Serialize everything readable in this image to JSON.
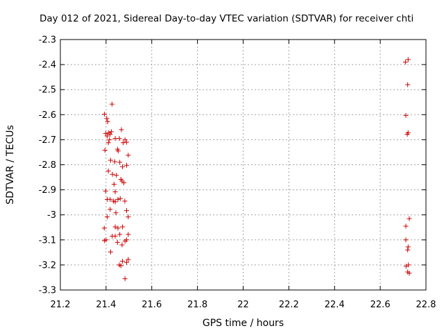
{
  "chart_data": {
    "type": "scatter",
    "title": "Day 012 of 2021, Sidereal Day-to-day VTEC variation (SDTVAR) for receiver chti",
    "xlabel": "GPS time / hours",
    "ylabel": "SDTVAR / TECUs",
    "xlim": [
      21.2,
      22.8
    ],
    "ylim": [
      -3.3,
      -2.3
    ],
    "xticks": [
      21.2,
      21.4,
      21.6,
      21.8,
      22,
      22.2,
      22.4,
      22.6,
      22.8
    ],
    "xtick_labels": [
      "21.2",
      "21.4",
      "21.6",
      "21.8",
      "22",
      "22.2",
      "22.4",
      "22.6",
      "22.8"
    ],
    "yticks": [
      -2.3,
      -2.4,
      -2.5,
      -2.6,
      -2.7,
      -2.8,
      -2.9,
      -3.0,
      -3.1,
      -3.2,
      -3.3
    ],
    "ytick_labels": [
      "-2.3",
      "-2.4",
      "-2.5",
      "-2.6",
      "-2.7",
      "-2.8",
      "-2.9",
      "-3",
      "-3.1",
      "-3.2",
      "-3.3"
    ],
    "grid": true,
    "marker": "plus",
    "marker_color": "#cc0000",
    "grid_color": "#a0a0a0",
    "series": [
      {
        "points": [
          [
            21.393,
            -2.598
          ],
          [
            21.403,
            -2.615
          ],
          [
            21.407,
            -2.628
          ],
          [
            21.398,
            -2.675
          ],
          [
            21.412,
            -2.672
          ],
          [
            21.405,
            -2.685
          ],
          [
            21.423,
            -2.668
          ],
          [
            21.418,
            -2.678
          ],
          [
            21.426,
            -2.558
          ],
          [
            21.395,
            -2.742
          ],
          [
            21.41,
            -2.712
          ],
          [
            21.415,
            -2.7
          ],
          [
            21.44,
            -2.695
          ],
          [
            21.458,
            -2.695
          ],
          [
            21.467,
            -2.66
          ],
          [
            21.475,
            -2.712
          ],
          [
            21.483,
            -2.7
          ],
          [
            21.49,
            -2.71
          ],
          [
            21.45,
            -2.738
          ],
          [
            21.453,
            -2.745
          ],
          [
            21.497,
            -2.762
          ],
          [
            21.42,
            -2.782
          ],
          [
            21.438,
            -2.788
          ],
          [
            21.46,
            -2.79
          ],
          [
            21.472,
            -2.808
          ],
          [
            21.49,
            -2.802
          ],
          [
            21.41,
            -2.825
          ],
          [
            21.428,
            -2.838
          ],
          [
            21.445,
            -2.842
          ],
          [
            21.465,
            -2.858
          ],
          [
            21.47,
            -2.865
          ],
          [
            21.478,
            -2.872
          ],
          [
            21.435,
            -2.878
          ],
          [
            21.398,
            -2.905
          ],
          [
            21.44,
            -2.908
          ],
          [
            21.405,
            -2.938
          ],
          [
            21.418,
            -2.938
          ],
          [
            21.432,
            -2.945
          ],
          [
            21.44,
            -2.948
          ],
          [
            21.452,
            -2.938
          ],
          [
            21.462,
            -2.935
          ],
          [
            21.482,
            -2.945
          ],
          [
            21.418,
            -2.978
          ],
          [
            21.443,
            -2.992
          ],
          [
            21.49,
            -2.983
          ],
          [
            21.405,
            -3.008
          ],
          [
            21.497,
            -3.008
          ],
          [
            21.392,
            -3.053
          ],
          [
            21.44,
            -3.048
          ],
          [
            21.452,
            -3.053
          ],
          [
            21.472,
            -3.048
          ],
          [
            21.427,
            -3.085
          ],
          [
            21.44,
            -3.085
          ],
          [
            21.46,
            -3.078
          ],
          [
            21.497,
            -3.078
          ],
          [
            21.4,
            -3.1
          ],
          [
            21.393,
            -3.103
          ],
          [
            21.45,
            -3.11
          ],
          [
            21.47,
            -3.12
          ],
          [
            21.483,
            -3.105
          ],
          [
            21.49,
            -3.1
          ],
          [
            21.42,
            -3.148
          ],
          [
            21.472,
            -3.185
          ],
          [
            21.49,
            -3.19
          ],
          [
            21.497,
            -3.178
          ],
          [
            21.458,
            -3.2
          ],
          [
            21.465,
            -3.203
          ],
          [
            21.483,
            -3.255
          ],
          [
            22.71,
            -2.39
          ],
          [
            22.722,
            -2.38
          ],
          [
            22.72,
            -2.48
          ],
          [
            22.712,
            -2.603
          ],
          [
            22.722,
            -2.672
          ],
          [
            22.718,
            -2.678
          ],
          [
            22.727,
            -3.015
          ],
          [
            22.712,
            -3.045
          ],
          [
            22.712,
            -3.1
          ],
          [
            22.722,
            -3.128
          ],
          [
            22.72,
            -3.14
          ],
          [
            22.713,
            -3.205
          ],
          [
            22.723,
            -3.2
          ],
          [
            22.72,
            -3.228
          ],
          [
            22.727,
            -3.233
          ]
        ]
      }
    ]
  }
}
